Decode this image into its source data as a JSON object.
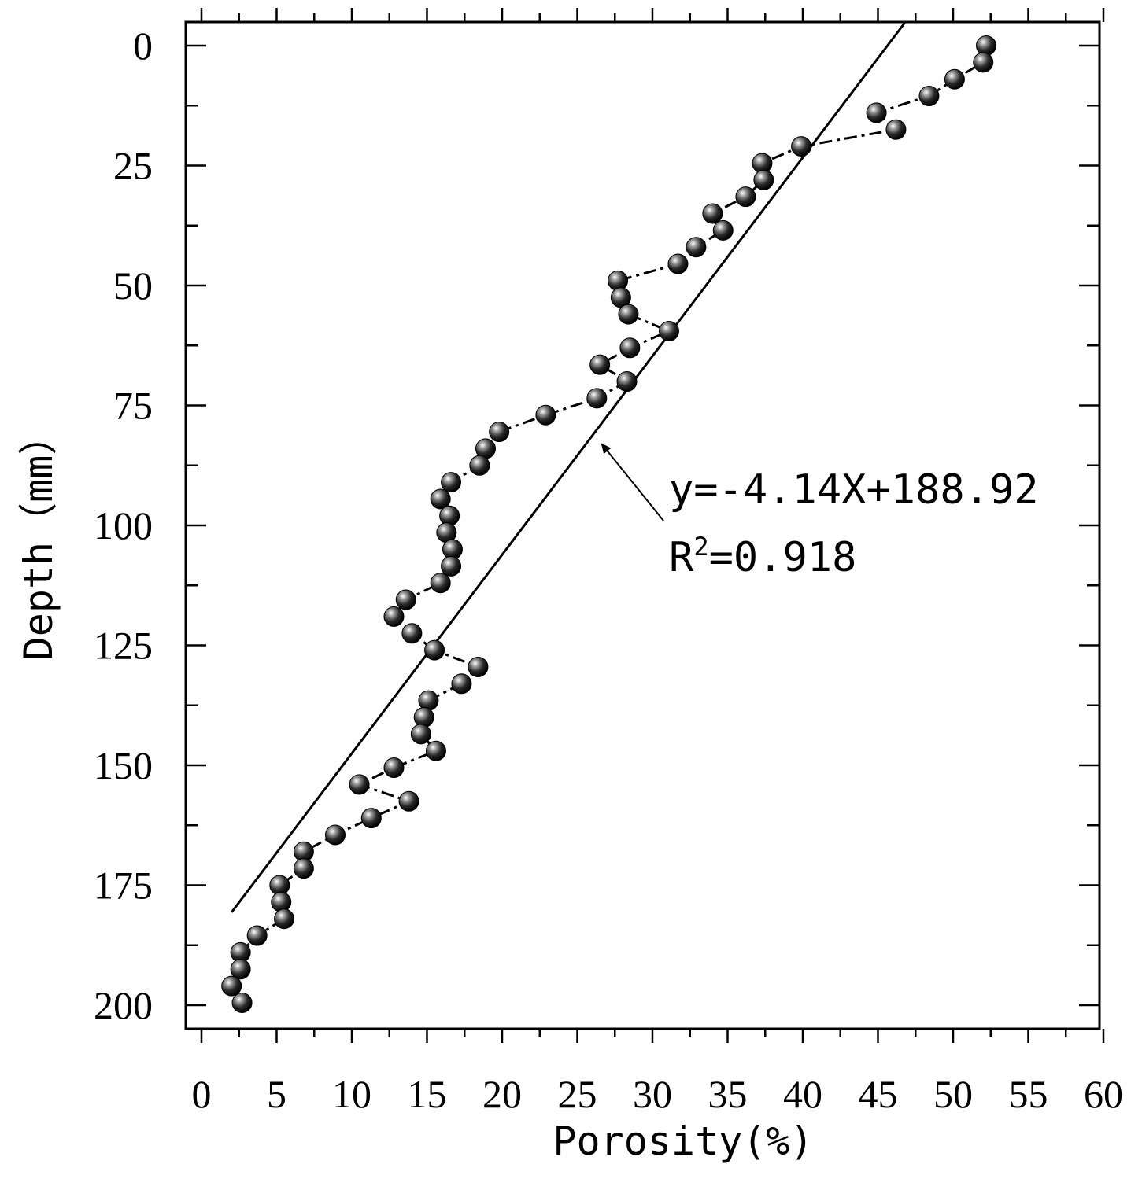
{
  "chart_data": {
    "type": "scatter",
    "xlabel": "Porosity(%)",
    "ylabel": "Depth（mm）",
    "xlim": [
      0,
      60
    ],
    "ylim": [
      0,
      200
    ],
    "y_inverted": true,
    "x_ticks": [
      0,
      5,
      10,
      15,
      20,
      25,
      30,
      35,
      40,
      45,
      50,
      55,
      60
    ],
    "y_ticks": [
      0,
      25,
      50,
      75,
      100,
      125,
      150,
      175,
      200
    ],
    "grid": false,
    "series": [
      {
        "marker": "sphere",
        "line_style": "dash-dot",
        "points": [
          {
            "x": 52.2,
            "y": 0
          },
          {
            "x": 52.0,
            "y": 3.5
          },
          {
            "x": 50.1,
            "y": 7
          },
          {
            "x": 48.4,
            "y": 10.5
          },
          {
            "x": 44.9,
            "y": 14
          },
          {
            "x": 46.2,
            "y": 17.5
          },
          {
            "x": 39.9,
            "y": 21
          },
          {
            "x": 37.3,
            "y": 24.5
          },
          {
            "x": 37.4,
            "y": 28
          },
          {
            "x": 36.2,
            "y": 31.5
          },
          {
            "x": 34.0,
            "y": 35
          },
          {
            "x": 34.7,
            "y": 38.5
          },
          {
            "x": 32.9,
            "y": 42
          },
          {
            "x": 31.7,
            "y": 45.5
          },
          {
            "x": 27.7,
            "y": 49
          },
          {
            "x": 27.9,
            "y": 52.5
          },
          {
            "x": 28.4,
            "y": 56
          },
          {
            "x": 31.1,
            "y": 59.5
          },
          {
            "x": 28.5,
            "y": 63
          },
          {
            "x": 26.5,
            "y": 66.5
          },
          {
            "x": 28.3,
            "y": 70
          },
          {
            "x": 26.3,
            "y": 73.5
          },
          {
            "x": 22.9,
            "y": 77
          },
          {
            "x": 19.8,
            "y": 80.5
          },
          {
            "x": 18.9,
            "y": 84
          },
          {
            "x": 18.5,
            "y": 87.5
          },
          {
            "x": 16.6,
            "y": 91
          },
          {
            "x": 15.9,
            "y": 94.5
          },
          {
            "x": 16.5,
            "y": 98
          },
          {
            "x": 16.3,
            "y": 101.5
          },
          {
            "x": 16.7,
            "y": 105
          },
          {
            "x": 16.6,
            "y": 108.5
          },
          {
            "x": 15.9,
            "y": 112
          },
          {
            "x": 13.6,
            "y": 115.5
          },
          {
            "x": 12.8,
            "y": 119
          },
          {
            "x": 14.0,
            "y": 122.5
          },
          {
            "x": 15.5,
            "y": 126
          },
          {
            "x": 18.4,
            "y": 129.5
          },
          {
            "x": 17.3,
            "y": 133
          },
          {
            "x": 15.1,
            "y": 136.5
          },
          {
            "x": 14.8,
            "y": 140
          },
          {
            "x": 14.6,
            "y": 143.5
          },
          {
            "x": 15.6,
            "y": 147
          },
          {
            "x": 12.8,
            "y": 150.5
          },
          {
            "x": 10.5,
            "y": 154
          },
          {
            "x": 13.8,
            "y": 157.5
          },
          {
            "x": 11.3,
            "y": 161
          },
          {
            "x": 8.9,
            "y": 164.5
          },
          {
            "x": 6.8,
            "y": 168
          },
          {
            "x": 6.8,
            "y": 171.5
          },
          {
            "x": 5.2,
            "y": 175
          },
          {
            "x": 5.3,
            "y": 178.5
          },
          {
            "x": 5.5,
            "y": 182
          },
          {
            "x": 3.7,
            "y": 185.5
          },
          {
            "x": 2.6,
            "y": 189
          },
          {
            "x": 2.6,
            "y": 192.5
          },
          {
            "x": 2.0,
            "y": 196
          },
          {
            "x": 2.7,
            "y": 199.5
          }
        ]
      }
    ],
    "fit_line": {
      "x_start": 2.0,
      "x_end": 46.8
    },
    "annotation": {
      "equation": "y=-4.14X+188.92",
      "r2_prefix": "R",
      "r2_sup": "2",
      "r2_value": "=0.918",
      "arrow_target": {
        "x": 26.3,
        "y": 82
      }
    }
  }
}
